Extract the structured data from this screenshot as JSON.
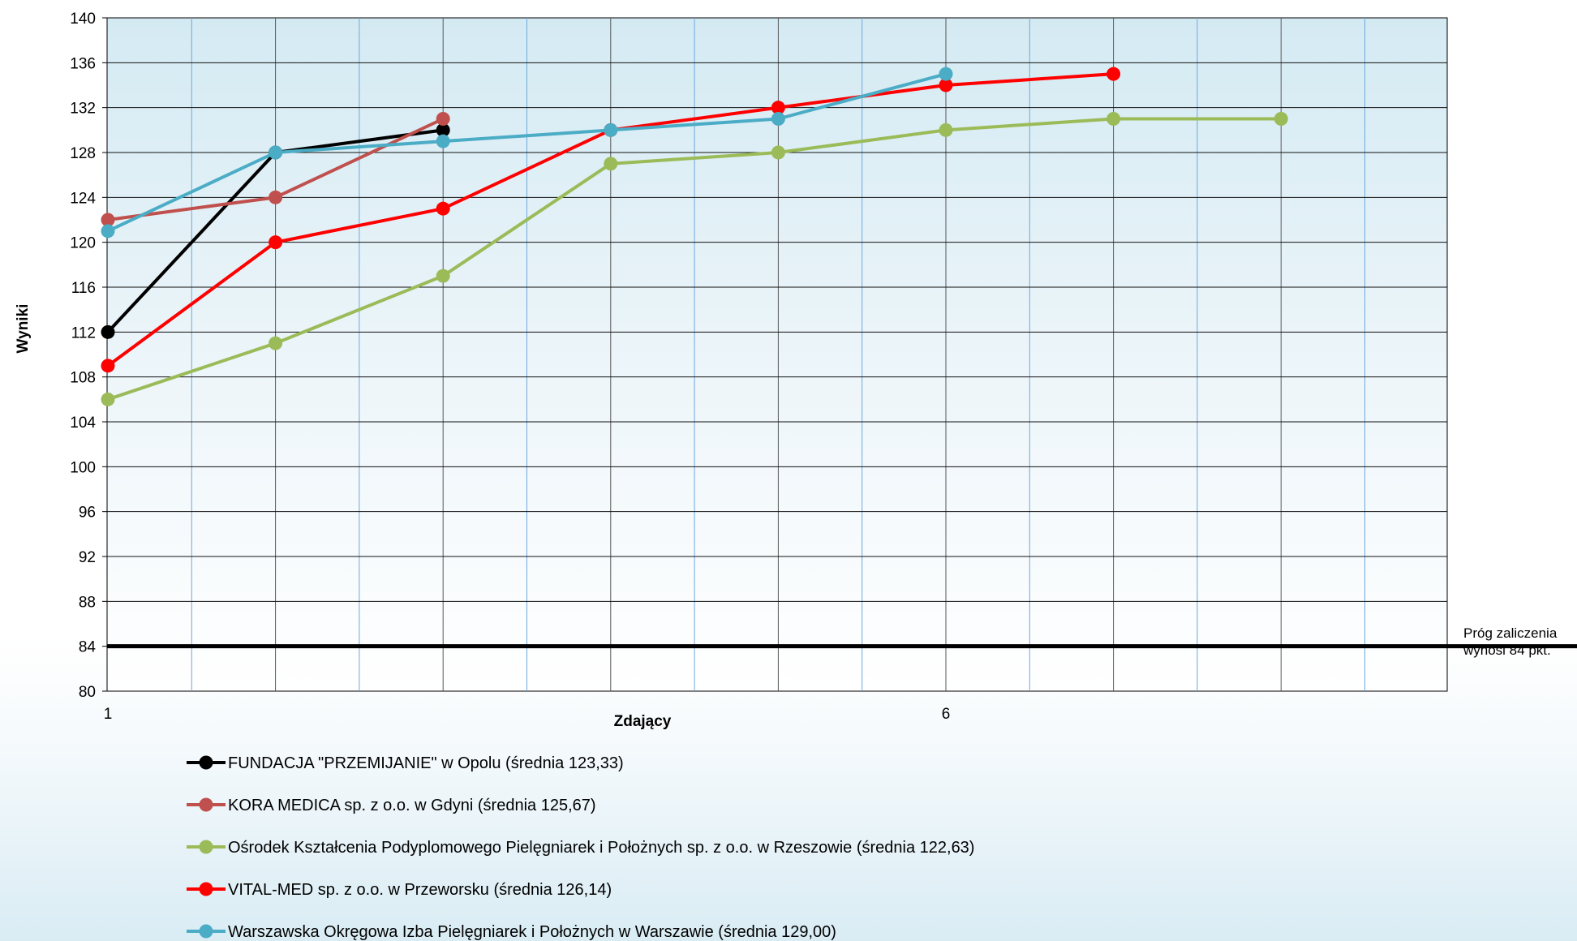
{
  "chart_data": {
    "type": "line",
    "title": "",
    "xlabel": "Zdający",
    "ylabel": "Wyniki",
    "ylim": [
      80,
      140
    ],
    "xlim": [
      1,
      9
    ],
    "y_ticks": [
      80,
      84,
      88,
      92,
      96,
      100,
      104,
      108,
      112,
      116,
      120,
      124,
      128,
      132,
      136,
      140
    ],
    "x_tick_labels": [
      {
        "x": 1,
        "label": "1"
      },
      {
        "x": 6,
        "label": "6"
      }
    ],
    "grid": true,
    "legend_position": "bottom",
    "threshold": {
      "value": 84,
      "label_lines": [
        "Próg zaliczenia",
        "wynosi 84 pkt."
      ]
    },
    "series": [
      {
        "name": "FUNDACJA \"PRZEMIJANIE\" w Opolu (średnia 123,33)",
        "color": "#000000",
        "x": [
          1,
          2,
          3
        ],
        "y": [
          112,
          128,
          130
        ]
      },
      {
        "name": "KORA MEDICA sp. z o.o. w Gdyni (średnia 125,67)",
        "color": "#c0504d",
        "x": [
          1,
          2,
          3
        ],
        "y": [
          122,
          124,
          131
        ]
      },
      {
        "name": "Ośrodek Kształcenia Podyplomowego Pielęgniarek i Położnych sp. z o.o. w Rzeszowie (średnia 122,63)",
        "color": "#9bbb59",
        "x": [
          1,
          2,
          3,
          4,
          5,
          6,
          7,
          8
        ],
        "y": [
          106,
          111,
          117,
          127,
          128,
          130,
          131,
          131
        ]
      },
      {
        "name": "VITAL-MED sp. z o.o. w Przeworsku (średnia 126,14)",
        "color": "#ff0000",
        "x": [
          1,
          2,
          3,
          4,
          5,
          6,
          7
        ],
        "y": [
          109,
          120,
          123,
          130,
          132,
          134,
          135
        ]
      },
      {
        "name": "Warszawska Okręgowa Izba Pielęgniarek i Położnych w Warszawie (średnia 129,00)",
        "color": "#4bacc6",
        "x": [
          1,
          2,
          3,
          4,
          5,
          6
        ],
        "y": [
          121,
          128,
          129,
          130,
          131,
          135
        ]
      }
    ]
  }
}
